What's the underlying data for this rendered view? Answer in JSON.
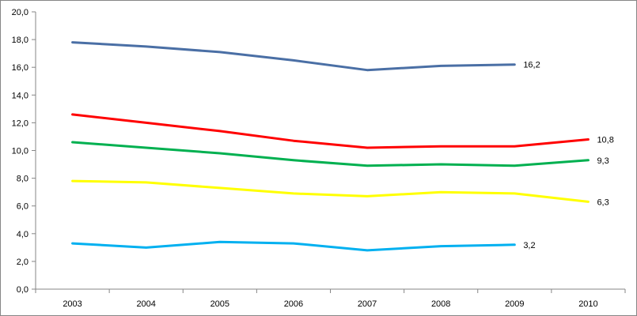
{
  "chart_data": {
    "type": "line",
    "title": "",
    "xlabel": "",
    "ylabel": "",
    "categories": [
      "2003",
      "2004",
      "2005",
      "2006",
      "2007",
      "2008",
      "2009",
      "2010"
    ],
    "ylim": [
      0,
      20
    ],
    "yticks": [
      "0,0",
      "2,0",
      "4,0",
      "6,0",
      "8,0",
      "10,0",
      "12,0",
      "14,0",
      "16,0",
      "18,0",
      "20,0"
    ],
    "grid": false,
    "legend": "none",
    "series": [
      {
        "color": "#4A6FA5",
        "values": [
          17.8,
          17.5,
          17.1,
          16.5,
          15.8,
          16.1,
          16.2,
          null
        ],
        "end_label": "16,2"
      },
      {
        "color": "#FF0000",
        "values": [
          12.6,
          12.0,
          11.4,
          10.7,
          10.2,
          10.3,
          10.3,
          10.8
        ],
        "end_label": "10,8"
      },
      {
        "color": "#00B050",
        "values": [
          10.6,
          10.2,
          9.8,
          9.3,
          8.9,
          9.0,
          8.9,
          9.3
        ],
        "end_label": "9,3"
      },
      {
        "color": "#FFFF00",
        "values": [
          7.8,
          7.7,
          7.3,
          6.9,
          6.7,
          7.0,
          6.9,
          6.3
        ],
        "end_label": "6,3"
      },
      {
        "color": "#00B0F0",
        "values": [
          3.3,
          3.0,
          3.4,
          3.3,
          2.8,
          3.1,
          3.2,
          null
        ],
        "end_label": "3,2"
      }
    ]
  }
}
